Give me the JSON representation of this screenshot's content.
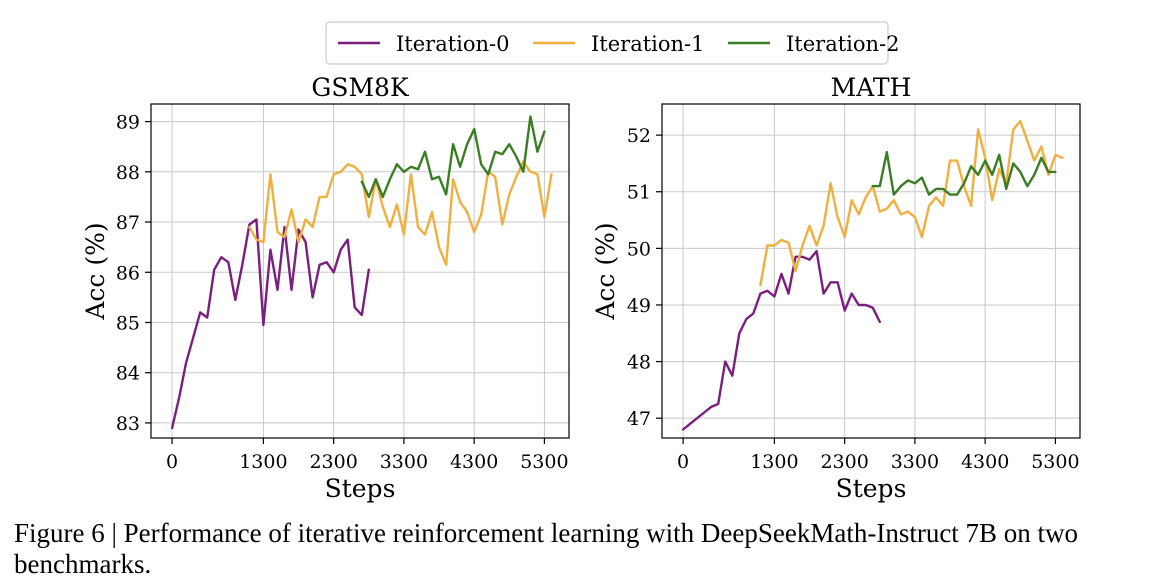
{
  "legend": {
    "entries": [
      {
        "name": "Iteration-0",
        "color": "#7b1f7f"
      },
      {
        "name": "Iteration-1",
        "color": "#f0b040"
      },
      {
        "name": "Iteration-2",
        "color": "#3a7d22"
      }
    ],
    "placement": "top-center"
  },
  "caption": "Figure 6 | Performance of iterative reinforcement learning with DeepSeekMath-Instruct 7B on two benchmarks.",
  "chart_data": [
    {
      "type": "line",
      "title": "GSM8K",
      "xlabel": "Steps",
      "ylabel": "Acc (%)",
      "xlim": [
        -300,
        5650
      ],
      "ylim": [
        82.7,
        89.35
      ],
      "xticks": [
        0,
        1300,
        2300,
        3300,
        4300,
        5300
      ],
      "yticks": [
        83,
        84,
        85,
        86,
        87,
        88,
        89
      ],
      "grid": true,
      "series": [
        {
          "name": "Iteration-0",
          "color": "#7b1f7f",
          "x": [
            0,
            100,
            200,
            300,
            400,
            500,
            600,
            700,
            800,
            900,
            1000,
            1100,
            1200,
            1300,
            1400,
            1500,
            1600,
            1700,
            1800,
            1900,
            2000,
            2100,
            2200,
            2300,
            2400,
            2500,
            2600,
            2700,
            2800
          ],
          "y": [
            82.9,
            83.5,
            84.2,
            84.7,
            85.2,
            85.1,
            86.05,
            86.3,
            86.2,
            85.45,
            86.15,
            86.95,
            87.05,
            84.95,
            86.45,
            85.65,
            86.9,
            85.65,
            86.85,
            86.6,
            85.5,
            86.15,
            86.2,
            86.0,
            86.45,
            86.65,
            85.3,
            85.15,
            86.05
          ]
        },
        {
          "name": "Iteration-1",
          "color": "#f0b040",
          "x": [
            1100,
            1200,
            1300,
            1400,
            1500,
            1600,
            1700,
            1800,
            1900,
            2000,
            2100,
            2200,
            2300,
            2400,
            2500,
            2600,
            2700,
            2800,
            2900,
            3000,
            3100,
            3200,
            3300,
            3400,
            3500,
            3600,
            3700,
            3800,
            3900,
            4000,
            4100,
            4200,
            4300,
            4400,
            4500,
            4600,
            4700,
            4800,
            4900,
            5000,
            5100,
            5200,
            5300,
            5400
          ],
          "y": [
            86.9,
            86.65,
            86.6,
            87.95,
            86.8,
            86.7,
            87.25,
            86.6,
            87.05,
            86.9,
            87.5,
            87.5,
            87.95,
            88.0,
            88.15,
            88.1,
            87.95,
            87.1,
            87.85,
            87.3,
            86.9,
            87.35,
            86.75,
            87.95,
            86.9,
            86.75,
            87.2,
            86.5,
            86.15,
            87.85,
            87.4,
            87.2,
            86.8,
            87.15,
            88.0,
            87.9,
            86.95,
            87.55,
            87.9,
            88.2,
            88.0,
            87.95,
            87.1,
            87.95
          ]
        },
        {
          "name": "Iteration-2",
          "color": "#3a7d22",
          "x": [
            2700,
            2800,
            2900,
            3000,
            3100,
            3200,
            3300,
            3400,
            3500,
            3600,
            3700,
            3800,
            3900,
            4000,
            4100,
            4200,
            4300,
            4400,
            4500,
            4600,
            4700,
            4800,
            4900,
            5000,
            5100,
            5200,
            5300
          ],
          "y": [
            87.8,
            87.5,
            87.85,
            87.5,
            87.85,
            88.15,
            88.0,
            88.1,
            88.05,
            88.4,
            87.85,
            87.9,
            87.55,
            88.55,
            88.1,
            88.55,
            88.85,
            88.15,
            87.95,
            88.4,
            88.35,
            88.55,
            88.3,
            88.0,
            89.1,
            88.4,
            88.8
          ]
        }
      ]
    },
    {
      "type": "line",
      "title": "MATH",
      "xlabel": "Steps",
      "ylabel": "Acc (%)",
      "xlim": [
        -300,
        5650
      ],
      "ylim": [
        46.65,
        52.55
      ],
      "xticks": [
        0,
        1300,
        2300,
        3300,
        4300,
        5300
      ],
      "yticks": [
        47,
        48,
        49,
        50,
        51,
        52
      ],
      "grid": true,
      "series": [
        {
          "name": "Iteration-0",
          "color": "#7b1f7f",
          "x": [
            0,
            100,
            200,
            300,
            400,
            500,
            600,
            700,
            800,
            900,
            1000,
            1100,
            1200,
            1300,
            1400,
            1500,
            1600,
            1700,
            1800,
            1900,
            2000,
            2100,
            2200,
            2300,
            2400,
            2500,
            2600,
            2700,
            2800
          ],
          "y": [
            46.8,
            46.9,
            47.0,
            47.1,
            47.2,
            47.25,
            48.0,
            47.75,
            48.5,
            48.75,
            48.85,
            49.2,
            49.25,
            49.15,
            49.55,
            49.2,
            49.85,
            49.85,
            49.8,
            49.95,
            49.2,
            49.4,
            49.4,
            48.9,
            49.2,
            49.0,
            49.0,
            48.95,
            48.7
          ]
        },
        {
          "name": "Iteration-1",
          "color": "#f0b040",
          "x": [
            1100,
            1200,
            1300,
            1400,
            1500,
            1600,
            1700,
            1800,
            1900,
            2000,
            2100,
            2200,
            2300,
            2400,
            2500,
            2600,
            2700,
            2800,
            2900,
            3000,
            3100,
            3200,
            3300,
            3400,
            3500,
            3600,
            3700,
            3800,
            3900,
            4000,
            4100,
            4200,
            4300,
            4400,
            4500,
            4600,
            4700,
            4800,
            4900,
            5000,
            5100,
            5200,
            5300,
            5400
          ],
          "y": [
            49.35,
            50.05,
            50.05,
            50.15,
            50.1,
            49.6,
            50.05,
            50.4,
            50.05,
            50.4,
            51.15,
            50.55,
            50.2,
            50.85,
            50.6,
            50.9,
            51.1,
            50.65,
            50.7,
            50.85,
            50.6,
            50.65,
            50.55,
            50.2,
            50.75,
            50.9,
            50.75,
            51.55,
            51.55,
            51.1,
            50.75,
            52.1,
            51.6,
            50.85,
            51.4,
            51.15,
            52.1,
            52.25,
            51.9,
            51.55,
            51.8,
            51.3,
            51.65,
            51.6
          ]
        },
        {
          "name": "Iteration-2",
          "color": "#3a7d22",
          "x": [
            2700,
            2800,
            2900,
            3000,
            3100,
            3200,
            3300,
            3400,
            3500,
            3600,
            3700,
            3800,
            3900,
            4000,
            4100,
            4200,
            4300,
            4400,
            4500,
            4600,
            4700,
            4800,
            4900,
            5000,
            5100,
            5200,
            5300
          ],
          "y": [
            51.1,
            51.1,
            51.7,
            50.95,
            51.1,
            51.2,
            51.15,
            51.25,
            50.95,
            51.05,
            51.05,
            50.95,
            50.95,
            51.15,
            51.45,
            51.3,
            51.55,
            51.3,
            51.65,
            51.05,
            51.5,
            51.35,
            51.1,
            51.3,
            51.6,
            51.35,
            51.35
          ]
        }
      ]
    }
  ]
}
